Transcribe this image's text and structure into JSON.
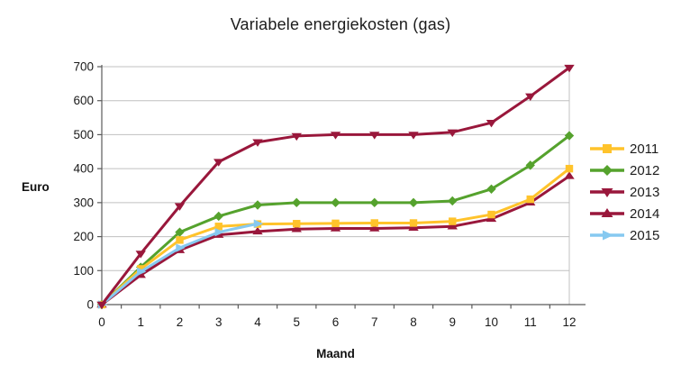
{
  "title": "Variabele energiekosten (gas)",
  "chart_data": {
    "type": "line",
    "title": "Variabele energiekosten (gas)",
    "xlabel": "Maand",
    "ylabel": "Euro",
    "x": [
      0,
      1,
      2,
      3,
      4,
      5,
      6,
      7,
      8,
      9,
      10,
      11,
      12
    ],
    "xticks": [
      0,
      1,
      2,
      3,
      4,
      5,
      6,
      7,
      8,
      9,
      10,
      11,
      12
    ],
    "yticks": [
      0,
      100,
      200,
      300,
      400,
      500,
      600,
      700
    ],
    "ylim": [
      0,
      700
    ],
    "xlim": [
      0,
      12
    ],
    "grid": true,
    "legend_position": "right",
    "series": [
      {
        "name": "2011",
        "color": "#FFC32B",
        "marker": "square",
        "values": [
          0,
          105,
          190,
          230,
          237,
          238,
          239,
          240,
          240,
          245,
          265,
          310,
          400
        ]
      },
      {
        "name": "2012",
        "color": "#55A22D",
        "marker": "diamond",
        "values": [
          0,
          110,
          213,
          260,
          293,
          300,
          300,
          300,
          300,
          305,
          340,
          410,
          497
        ]
      },
      {
        "name": "2013",
        "color": "#99173B",
        "marker": "triangle-down",
        "values": [
          0,
          150,
          290,
          420,
          478,
          496,
          500,
          500,
          500,
          507,
          535,
          613,
          697
        ]
      },
      {
        "name": "2014",
        "color": "#99173B",
        "marker": "triangle-up",
        "values": [
          0,
          87,
          160,
          205,
          215,
          222,
          224,
          224,
          226,
          230,
          252,
          300,
          378
        ]
      },
      {
        "name": "2015",
        "color": "#86C9F0",
        "marker": "triangle-right",
        "values": [
          0,
          97,
          167,
          213,
          238
        ]
      }
    ],
    "colors": {
      "grid": "#c0c0c0",
      "axis": "#5a5a5a",
      "tick_text": "#1a1a1a"
    }
  }
}
